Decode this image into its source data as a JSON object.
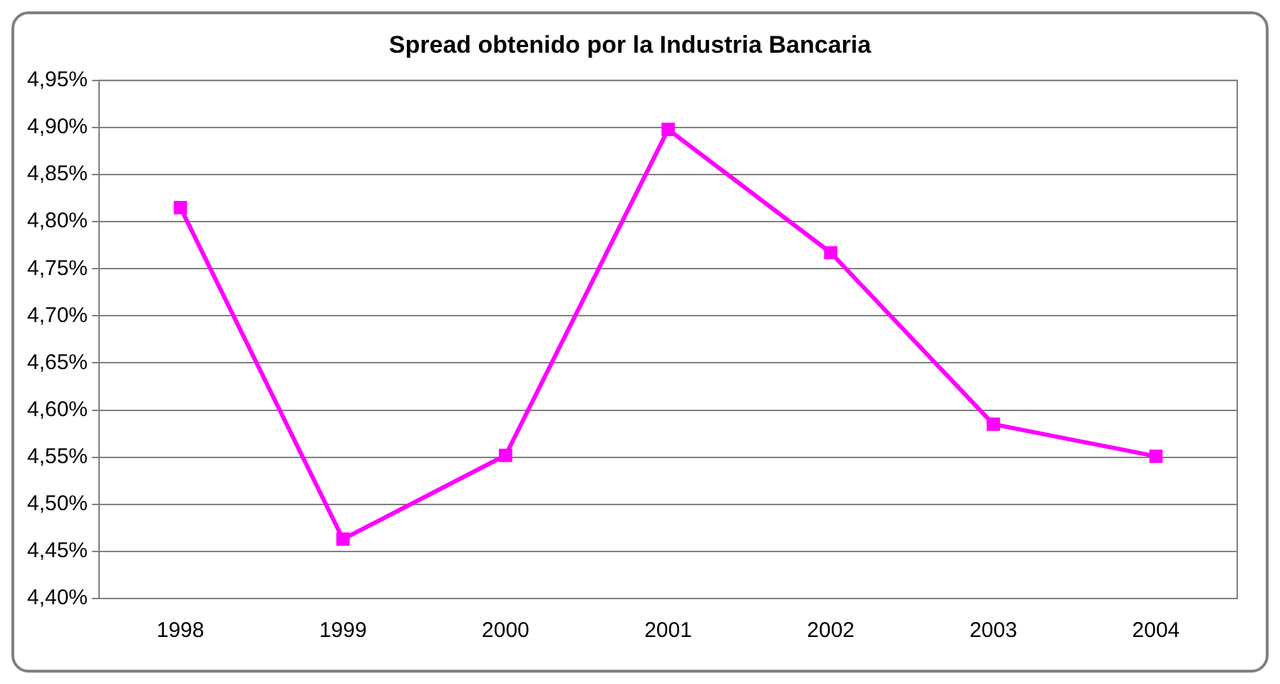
{
  "chart_data": {
    "type": "line",
    "title": "Spread obtenido por la Industria Bancaria",
    "categories": [
      "1998",
      "1999",
      "2000",
      "2001",
      "2002",
      "2003",
      "2004"
    ],
    "series": [
      {
        "color": "#ff00ff",
        "values": [
          4.815,
          4.463,
          4.552,
          4.898,
          4.767,
          4.585,
          4.551
        ]
      }
    ],
    "ylim": [
      4.4,
      4.95
    ],
    "yticks": [
      {
        "value": 4.4,
        "label": "4,40%"
      },
      {
        "value": 4.45,
        "label": "4,45%"
      },
      {
        "value": 4.5,
        "label": "4,50%"
      },
      {
        "value": 4.55,
        "label": "4,55%"
      },
      {
        "value": 4.6,
        "label": "4,60%"
      },
      {
        "value": 4.65,
        "label": "4,65%"
      },
      {
        "value": 4.7,
        "label": "4,70%"
      },
      {
        "value": 4.75,
        "label": "4,75%"
      },
      {
        "value": 4.8,
        "label": "4,80%"
      },
      {
        "value": 4.85,
        "label": "4,85%"
      },
      {
        "value": 4.9,
        "label": "4,90%"
      },
      {
        "value": 4.95,
        "label": "4,95%"
      }
    ],
    "grid": "y",
    "legend": false,
    "marker": "square",
    "line_style": "solid"
  }
}
